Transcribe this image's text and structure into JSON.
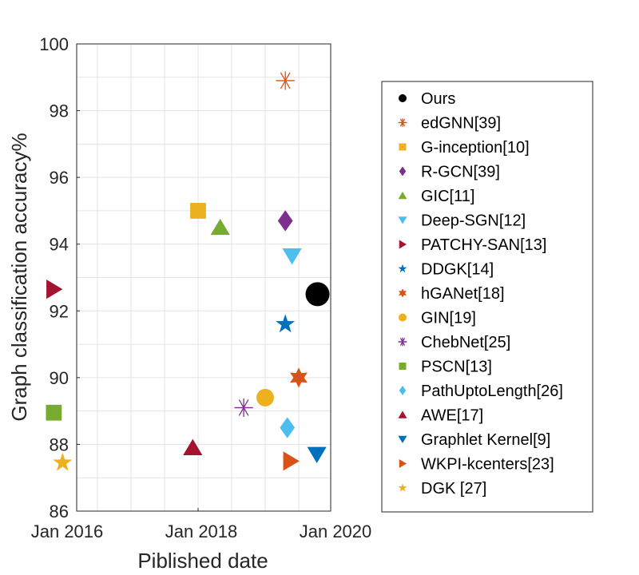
{
  "chart_data": {
    "type": "scatter",
    "title": "",
    "xlabel": "Piblished date",
    "ylabel": "Graph classification accuracy%",
    "xlim": [
      2015.93,
      2020.0
    ],
    "ylim": [
      86,
      100
    ],
    "grid": true,
    "legend_position": "right",
    "x_ticks": [
      {
        "value": 2016.0,
        "label": "Jan 2016"
      },
      {
        "value": 2018.0,
        "label": "Jan 2018"
      },
      {
        "value": 2020.0,
        "label": "Jan 2020"
      }
    ],
    "x_grid": [
      2016.0,
      2016.5,
      2017.0,
      2017.5,
      2018.0,
      2018.5,
      2019.0,
      2019.5,
      2020.0
    ],
    "y_ticks": [
      86,
      88,
      90,
      92,
      94,
      96,
      98,
      100
    ],
    "series": [
      {
        "name": "Ours",
        "marker": "circle",
        "color": "#000000",
        "x": 2019.78,
        "y": 92.5
      },
      {
        "name": "edGNN[39]",
        "marker": "asterisk",
        "color": "#D95319",
        "x": 2019.3,
        "y": 98.9
      },
      {
        "name": "G-inception[10]",
        "marker": "square",
        "color": "#EDB120",
        "x": 2018.0,
        "y": 95.0
      },
      {
        "name": "R-GCN[39]",
        "marker": "diamond",
        "color": "#7E2F8E",
        "x": 2019.3,
        "y": 94.7
      },
      {
        "name": "GIC[11]",
        "marker": "triangle-up",
        "color": "#77AC30",
        "x": 2018.33,
        "y": 94.5
      },
      {
        "name": "Deep-SGN[12]",
        "marker": "triangle-down",
        "color": "#4DBEEE",
        "x": 2019.4,
        "y": 93.65
      },
      {
        "name": "PATCHY-SAN[13]",
        "marker": "triangle-right",
        "color": "#A2142F",
        "x": 2015.85,
        "y": 92.65
      },
      {
        "name": "DDGK[14]",
        "marker": "pentagram",
        "color": "#0072BD",
        "x": 2019.3,
        "y": 91.6
      },
      {
        "name": "hGANet[18]",
        "marker": "hexagram",
        "color": "#D95319",
        "x": 2019.5,
        "y": 90.0
      },
      {
        "name": "GIN[19]",
        "marker": "circle",
        "color": "#EDB120",
        "x": 2019.0,
        "y": 89.4
      },
      {
        "name": "ChebNet[25]",
        "marker": "asterisk",
        "color": "#7E2F8E",
        "x": 2018.68,
        "y": 89.1
      },
      {
        "name": "PSCN[13]",
        "marker": "square",
        "color": "#77AC30",
        "x": 2015.85,
        "y": 88.95
      },
      {
        "name": "PathUptoLength[26]",
        "marker": "diamond",
        "color": "#4DBEEE",
        "x": 2019.33,
        "y": 88.5
      },
      {
        "name": "AWE[17]",
        "marker": "triangle-up",
        "color": "#A2142F",
        "x": 2017.92,
        "y": 87.9
      },
      {
        "name": "Graphlet Kernel[9]",
        "marker": "triangle-down",
        "color": "#0072BD",
        "x": 2019.77,
        "y": 87.7
      },
      {
        "name": "WKPI-kcenters[23]",
        "marker": "triangle-right",
        "color": "#D95319",
        "x": 2019.38,
        "y": 87.5
      },
      {
        "name": "DGK [27]",
        "marker": "pentagram",
        "color": "#EDB120",
        "x": 2015.98,
        "y": 87.45
      }
    ]
  }
}
